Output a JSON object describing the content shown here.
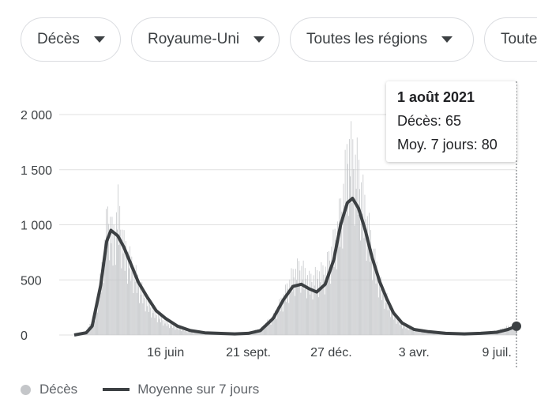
{
  "filters": [
    {
      "label": "Décès"
    },
    {
      "label": "Royaume-Uni"
    },
    {
      "label": "Toutes les régions"
    },
    {
      "label": "Toute"
    }
  ],
  "tooltip": {
    "date": "1 août 2021",
    "deaths_label": "Décès: 65",
    "avg_label": "Moy. 7 jours: 80"
  },
  "legend": {
    "deaths": "Décès",
    "average": "Moyenne sur 7 jours"
  },
  "colors": {
    "bars": "#c4c6c9",
    "line": "#3c4043",
    "grid": "#e0e0e0"
  },
  "chart_data": {
    "type": "bar",
    "ylim": [
      0,
      2000
    ],
    "yticks": [
      {
        "value": 0,
        "label": "0"
      },
      {
        "value": 500,
        "label": "500"
      },
      {
        "value": 1000,
        "label": "1 000"
      },
      {
        "value": 1500,
        "label": "1 500"
      },
      {
        "value": 2000,
        "label": "2 000"
      }
    ],
    "x_start": "2020-03-01",
    "x_end": "2021-08-01",
    "xticks": [
      {
        "date": "2020-06-16",
        "label": "16 juin"
      },
      {
        "date": "2020-09-21",
        "label": "21 sept."
      },
      {
        "date": "2020-12-27",
        "label": "27 déc."
      },
      {
        "date": "2021-04-03",
        "label": "3 avr."
      },
      {
        "date": "2021-07-09",
        "label": "9 juil."
      }
    ],
    "series": [
      {
        "name": "Décès",
        "type": "bar",
        "points": [
          [
            "2020-03-01",
            0
          ],
          [
            "2020-03-15",
            40
          ],
          [
            "2020-03-25",
            180
          ],
          [
            "2020-04-01",
            550
          ],
          [
            "2020-04-08",
            1100
          ],
          [
            "2020-04-11",
            1130
          ],
          [
            "2020-04-15",
            900
          ],
          [
            "2020-04-21",
            1220
          ],
          [
            "2020-04-28",
            850
          ],
          [
            "2020-05-06",
            700
          ],
          [
            "2020-05-15",
            500
          ],
          [
            "2020-05-25",
            320
          ],
          [
            "2020-06-05",
            200
          ],
          [
            "2020-06-16",
            120
          ],
          [
            "2020-06-30",
            70
          ],
          [
            "2020-07-15",
            30
          ],
          [
            "2020-08-15",
            10
          ],
          [
            "2020-09-05",
            10
          ],
          [
            "2020-09-21",
            20
          ],
          [
            "2020-10-05",
            60
          ],
          [
            "2020-10-20",
            180
          ],
          [
            "2020-11-01",
            370
          ],
          [
            "2020-11-11",
            560
          ],
          [
            "2020-11-20",
            650
          ],
          [
            "2020-12-01",
            520
          ],
          [
            "2020-12-10",
            560
          ],
          [
            "2020-12-20",
            620
          ],
          [
            "2020-12-30",
            880
          ],
          [
            "2021-01-07",
            1180
          ],
          [
            "2021-01-12",
            1500
          ],
          [
            "2021-01-16",
            1800
          ],
          [
            "2021-01-20",
            1710
          ],
          [
            "2021-01-26",
            1600
          ],
          [
            "2021-02-02",
            1300
          ],
          [
            "2021-02-09",
            990
          ],
          [
            "2021-02-16",
            700
          ],
          [
            "2021-02-23",
            470
          ],
          [
            "2021-03-02",
            340
          ],
          [
            "2021-03-10",
            200
          ],
          [
            "2021-03-20",
            100
          ],
          [
            "2021-04-03",
            50
          ],
          [
            "2021-04-20",
            25
          ],
          [
            "2021-05-10",
            10
          ],
          [
            "2021-06-01",
            8
          ],
          [
            "2021-06-20",
            15
          ],
          [
            "2021-07-09",
            40
          ],
          [
            "2021-07-22",
            80
          ],
          [
            "2021-08-01",
            65
          ]
        ]
      },
      {
        "name": "Moyenne sur 7 jours",
        "type": "line",
        "points": [
          [
            "2020-03-01",
            0
          ],
          [
            "2020-03-15",
            20
          ],
          [
            "2020-03-22",
            80
          ],
          [
            "2020-04-01",
            450
          ],
          [
            "2020-04-08",
            850
          ],
          [
            "2020-04-13",
            950
          ],
          [
            "2020-04-21",
            900
          ],
          [
            "2020-04-28",
            800
          ],
          [
            "2020-05-06",
            650
          ],
          [
            "2020-05-15",
            480
          ],
          [
            "2020-05-25",
            350
          ],
          [
            "2020-06-05",
            220
          ],
          [
            "2020-06-16",
            150
          ],
          [
            "2020-06-30",
            80
          ],
          [
            "2020-07-15",
            40
          ],
          [
            "2020-08-01",
            20
          ],
          [
            "2020-09-05",
            10
          ],
          [
            "2020-09-21",
            15
          ],
          [
            "2020-10-05",
            40
          ],
          [
            "2020-10-20",
            150
          ],
          [
            "2020-11-01",
            320
          ],
          [
            "2020-11-12",
            440
          ],
          [
            "2020-11-22",
            460
          ],
          [
            "2020-12-01",
            420
          ],
          [
            "2020-12-10",
            390
          ],
          [
            "2020-12-20",
            460
          ],
          [
            "2020-12-30",
            680
          ],
          [
            "2021-01-07",
            1000
          ],
          [
            "2021-01-15",
            1200
          ],
          [
            "2021-01-21",
            1240
          ],
          [
            "2021-01-28",
            1150
          ],
          [
            "2021-02-05",
            950
          ],
          [
            "2021-02-13",
            700
          ],
          [
            "2021-02-22",
            480
          ],
          [
            "2021-03-02",
            330
          ],
          [
            "2021-03-10",
            200
          ],
          [
            "2021-03-20",
            110
          ],
          [
            "2021-04-03",
            50
          ],
          [
            "2021-04-20",
            30
          ],
          [
            "2021-05-10",
            15
          ],
          [
            "2021-06-01",
            10
          ],
          [
            "2021-06-20",
            15
          ],
          [
            "2021-07-09",
            25
          ],
          [
            "2021-07-22",
            50
          ],
          [
            "2021-08-01",
            80
          ]
        ]
      }
    ],
    "highlight": {
      "date": "2021-08-01",
      "deaths": 65,
      "avg": 80
    }
  }
}
